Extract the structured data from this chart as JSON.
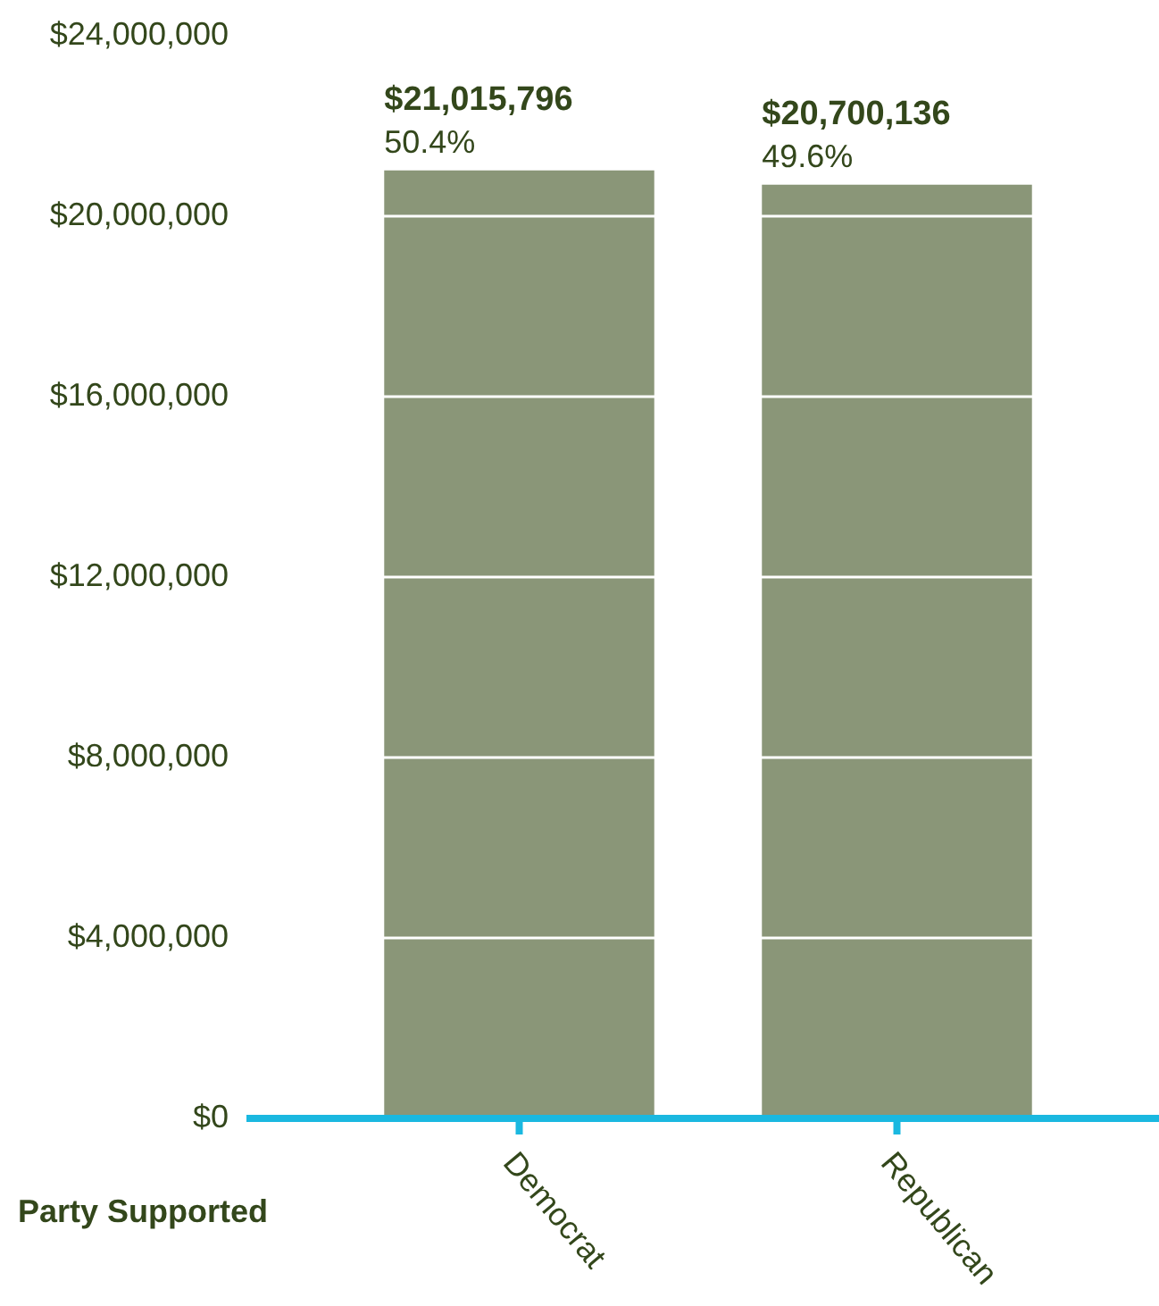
{
  "chart_data": {
    "type": "bar",
    "xlabel": "Party Supported",
    "categories": [
      "Democrat",
      "Republican"
    ],
    "values": [
      21015796,
      20700136
    ],
    "color": "#8a9678",
    "value_labels": [
      "$21,015,796",
      "$20,700,136"
    ],
    "annotations": [
      {
        "text": "50.4%",
        "x": "Democrat",
        "y": 21015796
      },
      {
        "text": "49.6%",
        "x": "Republican",
        "y": 20700136
      }
    ],
    "ylim": [
      0,
      24000000
    ],
    "yticks": [
      {
        "value": 0,
        "label": "$0"
      },
      {
        "value": 4000000,
        "label": "$4,000,000"
      },
      {
        "value": 8000000,
        "label": "$8,000,000"
      },
      {
        "value": 12000000,
        "label": "$12,000,000"
      },
      {
        "value": 16000000,
        "label": "$16,000,000"
      },
      {
        "value": 20000000,
        "label": "$20,000,000"
      },
      {
        "value": 24000000,
        "label": "$24,000,000"
      }
    ],
    "grid": "y",
    "legend": false
  }
}
